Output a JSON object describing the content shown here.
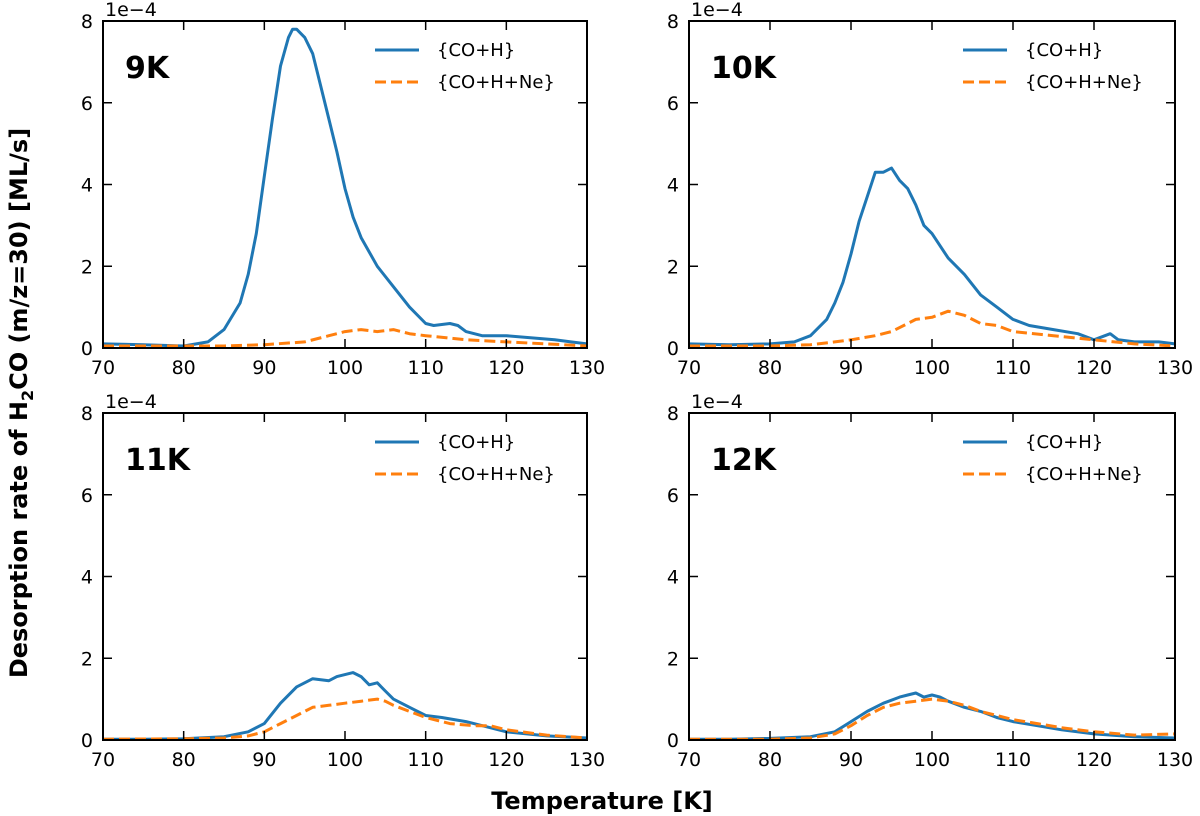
{
  "chart_data": {
    "type": "line",
    "xlabel": "Temperature [K]",
    "ylabel_parts": [
      "Desorption rate of H",
      "2",
      "CO (m/z=30) [ML/s]"
    ],
    "xlim": [
      70,
      130
    ],
    "ylim": [
      0,
      8
    ],
    "y_scale_label": "1e−4",
    "xticks": [
      70,
      80,
      90,
      100,
      110,
      120,
      130
    ],
    "yticks": [
      0,
      2,
      4,
      6,
      8
    ],
    "series_names": [
      "{CO+H}",
      "{CO+H+Ne}"
    ],
    "series_colors": [
      "#1f77b4",
      "#ff7f0e"
    ],
    "panels": [
      {
        "label": "9K",
        "series": [
          {
            "name": "{CO+H}",
            "x": [
              70,
              75,
              80,
              83,
              85,
              87,
              88,
              89,
              90,
              91,
              92,
              93,
              93.5,
              94,
              95,
              96,
              97,
              98,
              99,
              100,
              101,
              102,
              104,
              106,
              108,
              110,
              111,
              113,
              114,
              115,
              117,
              120,
              123,
              126,
              128,
              130
            ],
            "y": [
              0.1,
              0.08,
              0.05,
              0.15,
              0.45,
              1.1,
              1.8,
              2.8,
              4.2,
              5.6,
              6.9,
              7.6,
              7.8,
              7.8,
              7.6,
              7.2,
              6.4,
              5.6,
              4.8,
              3.9,
              3.2,
              2.7,
              2.0,
              1.5,
              1.0,
              0.6,
              0.55,
              0.6,
              0.55,
              0.4,
              0.3,
              0.3,
              0.25,
              0.2,
              0.15,
              0.1
            ]
          },
          {
            "name": "{CO+H+Ne}",
            "x": [
              70,
              80,
              85,
              90,
              95,
              98,
              100,
              102,
              104,
              106,
              108,
              110,
              115,
              120,
              125,
              130
            ],
            "y": [
              0.05,
              0.05,
              0.05,
              0.08,
              0.15,
              0.3,
              0.4,
              0.45,
              0.4,
              0.45,
              0.35,
              0.3,
              0.2,
              0.15,
              0.1,
              0.05
            ]
          }
        ]
      },
      {
        "label": "10K",
        "series": [
          {
            "name": "{CO+H}",
            "x": [
              70,
              75,
              80,
              83,
              85,
              87,
              88,
              89,
              90,
              91,
              92,
              93,
              94,
              95,
              96,
              97,
              98,
              99,
              100,
              102,
              104,
              106,
              108,
              110,
              112,
              115,
              118,
              120,
              122,
              123,
              125,
              128,
              130
            ],
            "y": [
              0.1,
              0.08,
              0.1,
              0.15,
              0.3,
              0.7,
              1.1,
              1.6,
              2.3,
              3.1,
              3.7,
              4.3,
              4.3,
              4.4,
              4.1,
              3.9,
              3.5,
              3.0,
              2.8,
              2.2,
              1.8,
              1.3,
              1.0,
              0.7,
              0.55,
              0.45,
              0.35,
              0.2,
              0.35,
              0.2,
              0.15,
              0.15,
              0.1
            ]
          },
          {
            "name": "{CO+H+Ne}",
            "x": [
              70,
              80,
              85,
              88,
              90,
              93,
              95,
              97,
              98,
              100,
              102,
              104,
              106,
              108,
              110,
              115,
              120,
              125,
              130
            ],
            "y": [
              0.05,
              0.05,
              0.08,
              0.15,
              0.2,
              0.3,
              0.4,
              0.6,
              0.7,
              0.75,
              0.9,
              0.8,
              0.6,
              0.55,
              0.4,
              0.3,
              0.2,
              0.1,
              0.05
            ]
          }
        ]
      },
      {
        "label": "11K",
        "series": [
          {
            "name": "{CO+H}",
            "x": [
              70,
              75,
              80,
              85,
              88,
              90,
              92,
              94,
              96,
              98,
              99,
              100,
              101,
              102,
              103,
              104,
              105,
              106,
              108,
              110,
              112,
              115,
              118,
              120,
              125,
              130
            ],
            "y": [
              0.02,
              0.02,
              0.03,
              0.08,
              0.2,
              0.4,
              0.9,
              1.3,
              1.5,
              1.45,
              1.55,
              1.6,
              1.65,
              1.55,
              1.35,
              1.4,
              1.2,
              1.0,
              0.8,
              0.6,
              0.55,
              0.45,
              0.3,
              0.2,
              0.1,
              0.05
            ]
          },
          {
            "name": "{CO+H+Ne}",
            "x": [
              70,
              80,
              85,
              88,
              90,
              92,
              94,
              96,
              98,
              100,
              102,
              104,
              105,
              106,
              108,
              110,
              113,
              116,
              118,
              120,
              125,
              130
            ],
            "y": [
              0.02,
              0.03,
              0.05,
              0.1,
              0.2,
              0.4,
              0.6,
              0.8,
              0.85,
              0.9,
              0.95,
              1.0,
              0.95,
              0.85,
              0.7,
              0.55,
              0.4,
              0.35,
              0.35,
              0.25,
              0.12,
              0.05
            ]
          }
        ]
      },
      {
        "label": "12K",
        "series": [
          {
            "name": "{CO+H}",
            "x": [
              70,
              75,
              80,
              85,
              88,
              90,
              92,
              94,
              96,
              97,
              98,
              99,
              100,
              101,
              102,
              104,
              106,
              108,
              110,
              113,
              116,
              120,
              125,
              130
            ],
            "y": [
              0.02,
              0.02,
              0.04,
              0.08,
              0.2,
              0.45,
              0.7,
              0.9,
              1.05,
              1.1,
              1.15,
              1.05,
              1.1,
              1.05,
              0.95,
              0.8,
              0.7,
              0.55,
              0.45,
              0.35,
              0.25,
              0.15,
              0.08,
              0.05
            ]
          },
          {
            "name": "{CO+H+Ne}",
            "x": [
              70,
              80,
              85,
              88,
              90,
              92,
              94,
              96,
              98,
              100,
              102,
              104,
              106,
              108,
              110,
              113,
              116,
              120,
              125,
              130
            ],
            "y": [
              0.02,
              0.02,
              0.05,
              0.15,
              0.35,
              0.6,
              0.8,
              0.9,
              0.95,
              1.0,
              0.95,
              0.85,
              0.7,
              0.6,
              0.5,
              0.4,
              0.3,
              0.2,
              0.12,
              0.15
            ]
          }
        ]
      }
    ]
  }
}
